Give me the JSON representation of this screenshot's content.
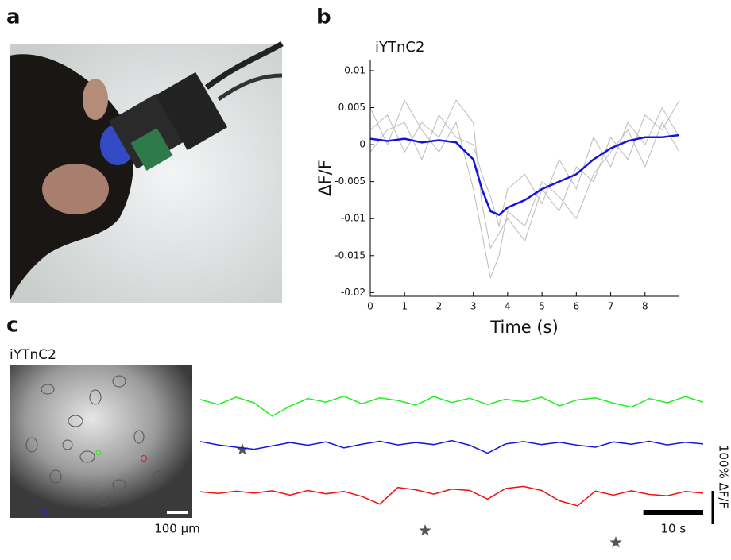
{
  "panel_labels": [
    "a",
    "b",
    "c"
  ],
  "image_scale_bar": "100 µm",
  "chart_data": [
    {
      "type": "line",
      "title": "iYTnC2",
      "xlabel": "Time (s)",
      "ylabel": "ΔF/F",
      "x": [
        0,
        0.5,
        1,
        1.5,
        2,
        2.5,
        3,
        3.25,
        3.5,
        3.75,
        4,
        4.5,
        5,
        5.5,
        6,
        6.5,
        7,
        7.5,
        8,
        8.5,
        9
      ],
      "series": [
        {
          "name": null,
          "color": "#bbbbbb",
          "values": [
            0.002,
            0.004,
            -0.001,
            0.003,
            0.001,
            0.006,
            0.003,
            -0.008,
            -0.014,
            -0.012,
            -0.01,
            -0.013,
            -0.006,
            -0.009,
            -0.003,
            -0.005,
            0.001,
            -0.002,
            0.004,
            0.002,
            0.006
          ]
        },
        {
          "name": null,
          "color": "#bbbbbb",
          "values": [
            -0.001,
            0.002,
            0.003,
            -0.002,
            0.004,
            0.001,
            0.0,
            -0.004,
            -0.007,
            -0.011,
            -0.006,
            -0.004,
            -0.008,
            -0.002,
            -0.006,
            0.001,
            -0.003,
            0.003,
            0.0,
            0.005,
            0.001
          ]
        },
        {
          "name": null,
          "color": "#bbbbbb",
          "values": [
            0.005,
            0.0,
            0.006,
            0.002,
            -0.001,
            0.003,
            -0.006,
            -0.012,
            -0.018,
            -0.015,
            -0.009,
            -0.011,
            -0.005,
            -0.007,
            -0.01,
            -0.004,
            -0.001,
            0.002,
            -0.003,
            0.003,
            -0.001
          ]
        },
        {
          "name": null,
          "color": "#1515d8",
          "values": [
            0.0008,
            0.0005,
            0.0008,
            0.0003,
            0.0006,
            0.0003,
            -0.002,
            -0.006,
            -0.009,
            -0.0095,
            -0.0085,
            -0.0075,
            -0.006,
            -0.005,
            -0.004,
            -0.002,
            -0.0005,
            0.0005,
            0.001,
            0.001,
            0.0013
          ]
        }
      ],
      "xlim": [
        0,
        9
      ],
      "ylim": [
        -0.0205,
        0.0115
      ],
      "xticks": [
        0,
        1,
        2,
        3,
        4,
        5,
        6,
        7,
        8
      ],
      "yticks": [
        0.01,
        0.005,
        0,
        -0.005,
        -0.01,
        -0.015,
        -0.02
      ]
    },
    {
      "type": "trace",
      "title": "iYTnC2",
      "x": [
        0,
        3,
        6,
        9,
        12,
        15,
        18,
        21,
        24,
        27,
        30,
        33,
        36,
        39,
        42,
        45,
        48,
        51,
        54,
        57,
        60,
        63,
        66,
        69,
        72,
        75,
        78,
        81,
        84
      ],
      "xlim": [
        0,
        84
      ],
      "series": [
        {
          "name": null,
          "color": "#22ee22",
          "values": [
            5,
            -10,
            12,
            -5,
            -45,
            -15,
            8,
            -3,
            15,
            -8,
            10,
            2,
            -12,
            14,
            -4,
            9,
            -10,
            6,
            -2,
            12,
            -14,
            4,
            10,
            -6,
            -18,
            8,
            -5,
            14,
            -3
          ]
        },
        {
          "name": null,
          "color": "#1515d8",
          "values": [
            5,
            -5,
            -12,
            -18,
            -8,
            2,
            -6,
            4,
            -14,
            -3,
            6,
            -5,
            2,
            -4,
            8,
            -6,
            -30,
            -2,
            5,
            -4,
            3,
            -6,
            -12,
            4,
            -3,
            6,
            -5,
            3,
            -2
          ]
        },
        {
          "name": null,
          "color": "#ee1111",
          "values": [
            2,
            -3,
            4,
            -2,
            5,
            -8,
            6,
            -4,
            3,
            -12,
            -35,
            15,
            8,
            -5,
            10,
            6,
            -20,
            12,
            18,
            6,
            -25,
            -40,
            4,
            -8,
            5,
            -6,
            -10,
            3,
            -2
          ]
        }
      ],
      "scale_bars": [
        {
          "value": 10,
          "label": "10 s"
        },
        {
          "value": 100,
          "label": "100% ΔF/F"
        }
      ]
    }
  ]
}
